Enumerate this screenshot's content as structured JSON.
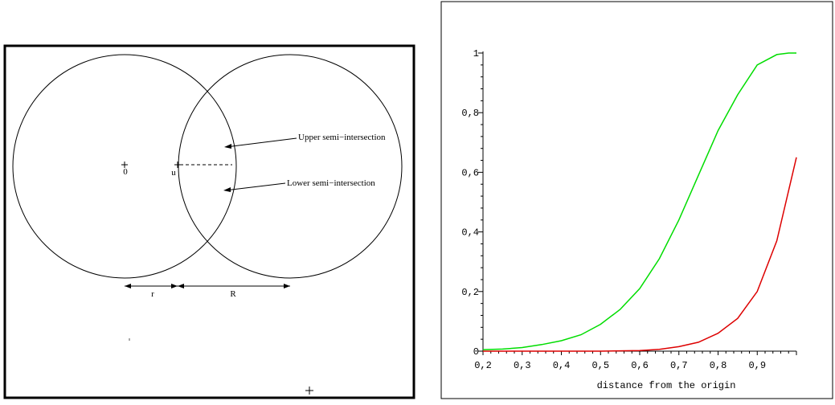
{
  "diagram": {
    "labels": {
      "origin": "0",
      "u": "u",
      "upper": "Upper semi−intersection",
      "lower": "Lower semi−intersection",
      "r": "r",
      "R": "R"
    }
  },
  "chart_data": {
    "type": "line",
    "xlabel": "distance from the origin",
    "ylabel": "",
    "xlim": [
      0.2,
      1.0
    ],
    "ylim": [
      0,
      1
    ],
    "x_tick_labels": [
      "0,2",
      "0,3",
      "0,4",
      "0,5",
      "0,6",
      "0,7",
      "0,8",
      "0,9"
    ],
    "y_tick_labels": [
      "0",
      "0,2",
      "0,4",
      "0,6",
      "0,8",
      "1"
    ],
    "series": [
      {
        "color": "#00dd00",
        "x": [
          0.2,
          0.25,
          0.3,
          0.35,
          0.4,
          0.45,
          0.5,
          0.55,
          0.6,
          0.65,
          0.7,
          0.75,
          0.8,
          0.85,
          0.9,
          0.95,
          0.98,
          1.0
        ],
        "y": [
          0.005,
          0.007,
          0.012,
          0.022,
          0.035,
          0.055,
          0.09,
          0.14,
          0.21,
          0.31,
          0.44,
          0.59,
          0.74,
          0.86,
          0.96,
          0.995,
          1.0,
          1.0
        ]
      },
      {
        "color": "#dd0000",
        "x": [
          0.2,
          0.3,
          0.4,
          0.5,
          0.6,
          0.65,
          0.7,
          0.75,
          0.8,
          0.85,
          0.9,
          0.95,
          1.0
        ],
        "y": [
          0,
          0,
          0,
          0,
          0.002,
          0.006,
          0.015,
          0.03,
          0.06,
          0.11,
          0.2,
          0.37,
          0.65
        ]
      }
    ]
  }
}
